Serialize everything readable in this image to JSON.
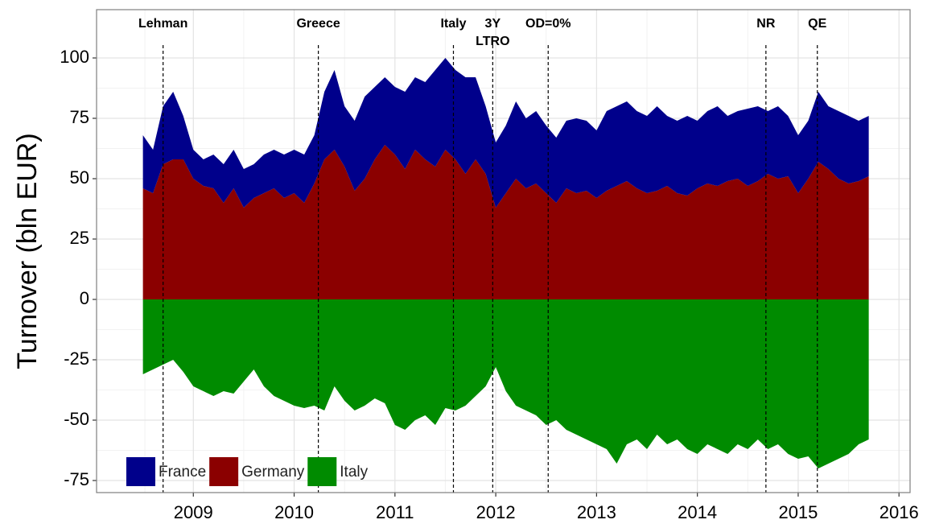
{
  "chart_data": {
    "type": "area",
    "stacked": true,
    "y_label": "Turnover (bln EUR)",
    "x": [
      2008.5,
      2008.6,
      2008.7,
      2008.8,
      2008.9,
      2009.0,
      2009.1,
      2009.2,
      2009.3,
      2009.4,
      2009.5,
      2009.6,
      2009.7,
      2009.8,
      2009.9,
      2010.0,
      2010.1,
      2010.2,
      2010.3,
      2010.4,
      2010.5,
      2010.6,
      2010.7,
      2010.8,
      2010.9,
      2011.0,
      2011.1,
      2011.2,
      2011.3,
      2011.4,
      2011.5,
      2011.6,
      2011.7,
      2011.8,
      2011.9,
      2012.0,
      2012.1,
      2012.2,
      2012.3,
      2012.4,
      2012.5,
      2012.6,
      2012.7,
      2012.8,
      2012.9,
      2013.0,
      2013.1,
      2013.2,
      2013.3,
      2013.4,
      2013.5,
      2013.6,
      2013.7,
      2013.8,
      2013.9,
      2014.0,
      2014.1,
      2014.2,
      2014.3,
      2014.4,
      2014.5,
      2014.6,
      2014.7,
      2014.8,
      2014.9,
      2015.0,
      2015.1,
      2015.2,
      2015.3,
      2015.4,
      2015.5,
      2015.6,
      2015.7
    ],
    "series": [
      {
        "name": "France",
        "color": "#00008b",
        "values": [
          22,
          18,
          24,
          28,
          18,
          12,
          11,
          14,
          16,
          16,
          16,
          14,
          16,
          16,
          18,
          18,
          20,
          20,
          28,
          33,
          25,
          29,
          34,
          30,
          28,
          28,
          32,
          30,
          32,
          40,
          38,
          37,
          40,
          34,
          28,
          27,
          28,
          32,
          29,
          30,
          28,
          27,
          28,
          31,
          29,
          28,
          33,
          33,
          33,
          32,
          32,
          35,
          29,
          30,
          33,
          28,
          30,
          33,
          27,
          28,
          32,
          31,
          26,
          30,
          25,
          24,
          24,
          29,
          26,
          28,
          28,
          25,
          25
        ]
      },
      {
        "name": "Germany",
        "color": "#8b0000",
        "values": [
          46,
          44,
          56,
          58,
          58,
          50,
          47,
          46,
          40,
          46,
          38,
          42,
          44,
          46,
          42,
          44,
          40,
          48,
          58,
          62,
          55,
          45,
          50,
          58,
          64,
          60,
          54,
          62,
          58,
          55,
          62,
          58,
          52,
          58,
          52,
          38,
          44,
          50,
          46,
          48,
          44,
          40,
          46,
          44,
          45,
          42,
          45,
          47,
          49,
          46,
          44,
          45,
          47,
          44,
          43,
          46,
          48,
          47,
          49,
          50,
          47,
          49,
          52,
          50,
          51,
          44,
          50,
          57,
          54,
          50,
          48,
          49,
          51
        ]
      },
      {
        "name": "Italy",
        "color": "#008b00",
        "values": [
          -31,
          -29,
          -27,
          -25,
          -30,
          -36,
          -38,
          -40,
          -38,
          -39,
          -34,
          -29,
          -36,
          -40,
          -42,
          -44,
          -45,
          -44,
          -46,
          -36,
          -42,
          -46,
          -44,
          -41,
          -43,
          -52,
          -54,
          -50,
          -48,
          -52,
          -45,
          -46,
          -44,
          -40,
          -36,
          -28,
          -38,
          -44,
          -46,
          -48,
          -52,
          -50,
          -54,
          -56,
          -58,
          -60,
          -62,
          -68,
          -60,
          -58,
          -62,
          -56,
          -60,
          -58,
          -62,
          -64,
          -60,
          -62,
          -64,
          -60,
          -62,
          -58,
          -62,
          -60,
          -64,
          -66,
          -65,
          -70,
          -68,
          -66,
          -64,
          -60,
          -58
        ]
      }
    ],
    "events": [
      {
        "x": 2008.7,
        "label": [
          "Lehman"
        ]
      },
      {
        "x": 2010.24,
        "label": [
          "Greece"
        ]
      },
      {
        "x": 2011.58,
        "label": [
          "Italy"
        ]
      },
      {
        "x": 2011.97,
        "label": [
          "3Y",
          "LTRO"
        ]
      },
      {
        "x": 2012.52,
        "label": [
          "OD=0%"
        ]
      },
      {
        "x": 2014.68,
        "label": [
          "NR"
        ]
      },
      {
        "x": 2015.19,
        "label": [
          "QE"
        ]
      }
    ],
    "xlim": [
      2008.04,
      2016.11
    ],
    "xticks": [
      2009,
      2010,
      2011,
      2012,
      2013,
      2014,
      2015,
      2016
    ],
    "ylim": [
      -80,
      120
    ],
    "yticks": [
      -75,
      -50,
      -25,
      0,
      25,
      50,
      75,
      100
    ],
    "grid": true,
    "legend": "bottom-left"
  }
}
